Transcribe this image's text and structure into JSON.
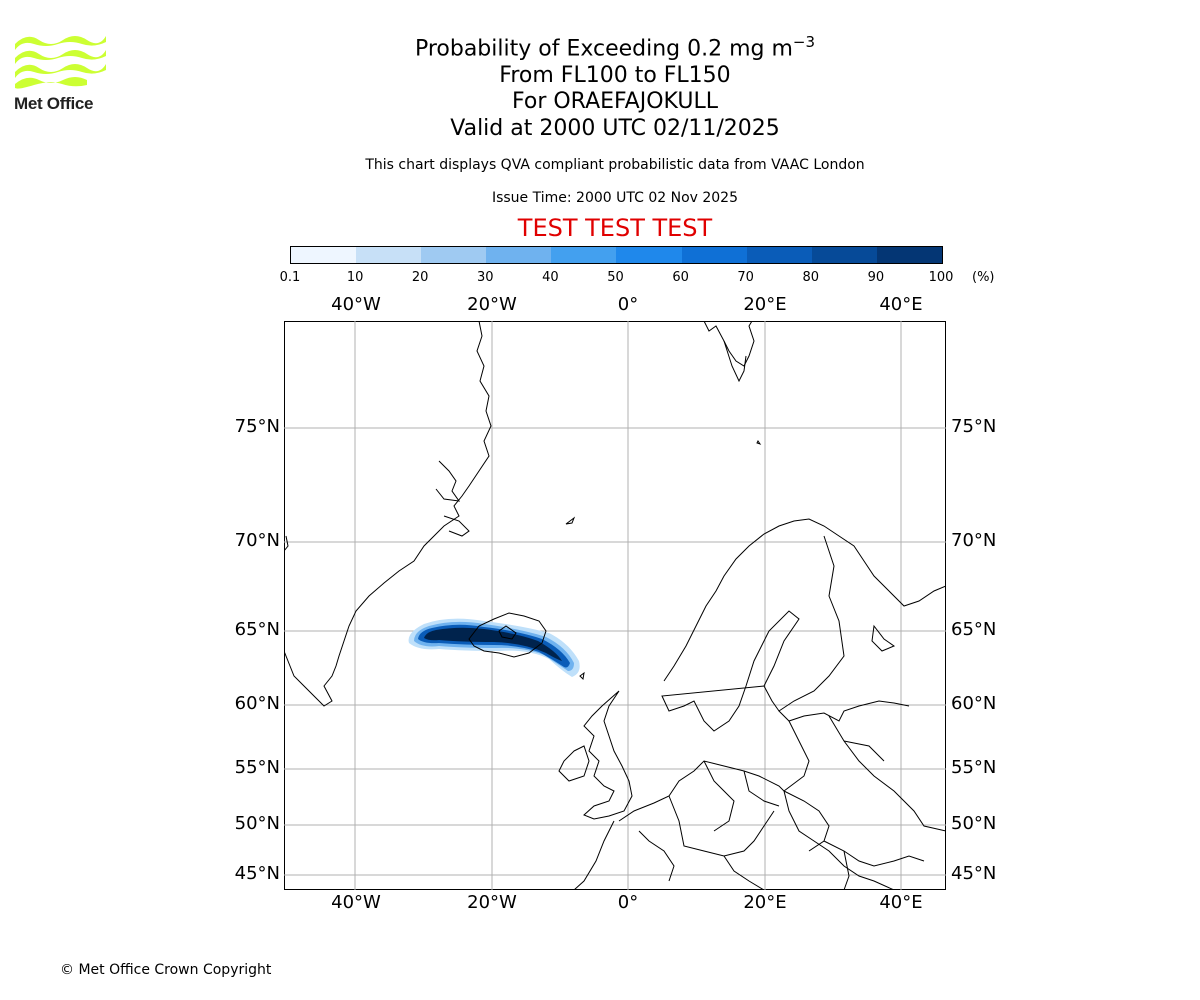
{
  "logo": {
    "text": "Met Office",
    "color": "#ccff33"
  },
  "title": {
    "main_prefix": "Probability of Exceeding 0.2 mg m",
    "main_exp": "−3",
    "flight_levels": "From FL100 to FL150",
    "volcano": "For ORAEFAJOKULL",
    "valid": "Valid at 2000 UTC 02/11/2025"
  },
  "subtitle": "This chart displays QVA compliant probabilistic data from VAAC London",
  "issue_time": "Issue Time: 2000 UTC 02 Nov 2025",
  "test_banner": "TEST TEST TEST",
  "colorbar": {
    "ticks": [
      "0.1",
      "10",
      "20",
      "30",
      "40",
      "50",
      "60",
      "70",
      "80",
      "90",
      "100"
    ],
    "unit": "(%)",
    "colors": [
      "#eef6ff",
      "#c7e0f7",
      "#9fcaf2",
      "#6fb2ef",
      "#43a0ef",
      "#1f88eb",
      "#0f70d6",
      "#0a5cb8",
      "#064a98",
      "#043674",
      "#00234d"
    ]
  },
  "map": {
    "lon_labels": [
      "40°W",
      "20°W",
      "0°",
      "20°E",
      "40°E"
    ],
    "lat_labels": [
      "75°N",
      "70°N",
      "65°N",
      "60°N",
      "55°N",
      "50°N",
      "45°N"
    ]
  },
  "copyright": "© Met Office Crown Copyright"
}
